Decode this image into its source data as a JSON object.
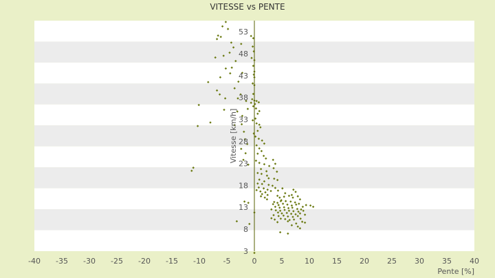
{
  "chart_data": {
    "type": "scatter",
    "title": "VITESSE vs PENTE",
    "xlabel": "Pente [%]",
    "ylabel": "Vitesse [km/h]",
    "xlim": [
      -40,
      40
    ],
    "ylim": [
      3,
      55.5
    ],
    "x_ticks": [
      -40,
      -35,
      -30,
      -25,
      -20,
      -15,
      -10,
      -5,
      0,
      5,
      10,
      15,
      20,
      25,
      30,
      35,
      40
    ],
    "y_ticks": [
      3,
      8,
      13,
      18,
      23,
      28,
      33,
      38,
      43,
      48,
      53
    ],
    "grid": "alternating horizontal bands",
    "legend": "none",
    "colors": {
      "background": "#eaf0c8",
      "band_light": "#ffffff",
      "band_dark": "#ececec",
      "marker": "#6b7a12",
      "text": "#555555",
      "axis": "#556000",
      "title": "#333333"
    },
    "series": [
      {
        "marker": "diamond",
        "points": [
          [
            -5.2,
            55.2
          ],
          [
            -5.8,
            54.2
          ],
          [
            -4.8,
            53.6
          ],
          [
            -6.6,
            52.1
          ],
          [
            -6.8,
            51.3
          ],
          [
            -6.1,
            51.8
          ],
          [
            -4.2,
            50.5
          ],
          [
            -3.8,
            49.4
          ],
          [
            -2.4,
            50.2
          ],
          [
            -4.5,
            48.2
          ],
          [
            -5.6,
            47.5
          ],
          [
            -3.4,
            46.3
          ],
          [
            -4.1,
            44.8
          ],
          [
            -5.2,
            44.6
          ],
          [
            -7.1,
            47.1
          ],
          [
            -6.2,
            42.6
          ],
          [
            -8.4,
            41.5
          ],
          [
            -4.4,
            43.5
          ],
          [
            -2.2,
            43.6
          ],
          [
            -2.9,
            41.6
          ],
          [
            -3.6,
            40.1
          ],
          [
            -6.8,
            39.6
          ],
          [
            -6.3,
            38.7
          ],
          [
            -5.3,
            37.8
          ],
          [
            -2.5,
            38.7
          ],
          [
            -3.0,
            37.8
          ],
          [
            -1.5,
            37.2
          ],
          [
            -10.1,
            36.3
          ],
          [
            -5.5,
            35.2
          ],
          [
            -3.1,
            34.8
          ],
          [
            -2.2,
            33.8
          ],
          [
            -1.2,
            35.4
          ],
          [
            -8.0,
            32.3
          ],
          [
            -10.3,
            31.5
          ],
          [
            -3.6,
            31.7
          ],
          [
            -2.3,
            31.9
          ],
          [
            -1.9,
            30.2
          ],
          [
            -1.7,
            28.5
          ],
          [
            -1.3,
            27.4
          ],
          [
            -2.4,
            26.3
          ],
          [
            -1.6,
            25.3
          ],
          [
            -2.0,
            23.8
          ],
          [
            -1.1,
            22.7
          ],
          [
            -11.1,
            22.0
          ],
          [
            -11.4,
            21.3
          ],
          [
            -1.1,
            14.0
          ],
          [
            -1.8,
            14.3
          ],
          [
            -3.2,
            9.8
          ],
          [
            -0.9,
            9.2
          ],
          [
            -0.6,
            52.0
          ],
          [
            -0.2,
            51.5
          ],
          [
            -0.3,
            49.6
          ],
          [
            -0.1,
            48.5
          ],
          [
            -0.5,
            47.0
          ],
          [
            0.0,
            46.5
          ],
          [
            -0.2,
            45.2
          ],
          [
            0.0,
            43.9
          ],
          [
            -0.1,
            43.2
          ],
          [
            0.0,
            42.6
          ],
          [
            -0.3,
            41.2
          ],
          [
            0.0,
            40.8
          ],
          [
            -0.2,
            38.8
          ],
          [
            -0.4,
            37.6
          ],
          [
            0.0,
            37.3
          ],
          [
            -0.6,
            36.8
          ],
          [
            0.1,
            36.5
          ],
          [
            0.4,
            37.2
          ],
          [
            0.8,
            36.9
          ],
          [
            -0.2,
            36.0
          ],
          [
            0.3,
            35.5
          ],
          [
            0.9,
            34.9
          ],
          [
            0.6,
            34.3
          ],
          [
            0.2,
            33.2
          ],
          [
            -0.3,
            32.8
          ],
          [
            0.4,
            32.1
          ],
          [
            0.9,
            31.8
          ],
          [
            1.1,
            31.2
          ],
          [
            0.6,
            30.4
          ],
          [
            -0.1,
            29.8
          ],
          [
            0.2,
            29.1
          ],
          [
            0.8,
            28.6
          ],
          [
            1.4,
            28.2
          ],
          [
            1.8,
            27.5
          ],
          [
            0.4,
            27.1
          ],
          [
            0.9,
            26.4
          ],
          [
            1.3,
            25.8
          ],
          [
            0.6,
            25.2
          ],
          [
            1.7,
            24.7
          ],
          [
            2.1,
            24.1
          ],
          [
            0.3,
            23.6
          ],
          [
            0.9,
            23.1
          ],
          [
            1.8,
            22.8
          ],
          [
            2.7,
            22.4
          ],
          [
            1.2,
            21.7
          ],
          [
            2.2,
            21.2
          ],
          [
            0.6,
            20.8
          ],
          [
            3.4,
            23.8
          ],
          [
            3.8,
            22.9
          ],
          [
            3.5,
            21.9
          ],
          [
            4.1,
            21.1
          ],
          [
            1.3,
            20.6
          ],
          [
            2.3,
            20.2
          ],
          [
            2.6,
            19.6
          ],
          [
            0.9,
            19.3
          ],
          [
            1.8,
            18.9
          ],
          [
            4.2,
            19.2
          ],
          [
            3.6,
            19.5
          ],
          [
            0.6,
            18.4
          ],
          [
            1.4,
            18.3
          ],
          [
            2.6,
            18.1
          ],
          [
            3.3,
            17.9
          ],
          [
            0.8,
            17.5
          ],
          [
            1.7,
            17.3
          ],
          [
            2.4,
            17.0
          ],
          [
            3.8,
            17.4
          ],
          [
            0.4,
            16.9
          ],
          [
            1.1,
            16.6
          ],
          [
            2.0,
            16.4
          ],
          [
            3.0,
            16.7
          ],
          [
            4.3,
            16.8
          ],
          [
            5.1,
            17.3
          ],
          [
            1.4,
            16.0
          ],
          [
            2.4,
            15.8
          ],
          [
            1.2,
            15.5
          ],
          [
            1.9,
            15.2
          ],
          [
            2.3,
            14.8
          ],
          [
            5.6,
            16.2
          ],
          [
            7.1,
            17.0
          ],
          [
            7.5,
            16.5
          ],
          [
            6.8,
            15.8
          ],
          [
            4.2,
            15.6
          ],
          [
            4.6,
            15.2
          ],
          [
            5.4,
            15.4
          ],
          [
            6.3,
            15.6
          ],
          [
            7.0,
            15.2
          ],
          [
            7.9,
            15.5
          ],
          [
            8.3,
            14.8
          ],
          [
            4.9,
            14.6
          ],
          [
            5.7,
            14.4
          ],
          [
            6.6,
            14.3
          ],
          [
            7.4,
            14.1
          ],
          [
            3.6,
            14.2
          ],
          [
            4.2,
            14.0
          ],
          [
            4.8,
            14.4
          ],
          [
            3.4,
            13.7
          ],
          [
            4.4,
            13.5
          ],
          [
            5.2,
            13.8
          ],
          [
            6.0,
            13.6
          ],
          [
            6.8,
            13.4
          ],
          [
            7.6,
            13.6
          ],
          [
            8.1,
            13.8
          ],
          [
            8.8,
            13.1
          ],
          [
            9.4,
            13.5
          ],
          [
            10.2,
            13.4
          ],
          [
            10.7,
            13.1
          ],
          [
            3.8,
            13.1
          ],
          [
            4.6,
            12.9
          ],
          [
            5.4,
            13.0
          ],
          [
            6.2,
            12.8
          ],
          [
            6.9,
            12.9
          ],
          [
            7.8,
            12.6
          ],
          [
            8.5,
            12.5
          ],
          [
            3.1,
            12.5
          ],
          [
            3.9,
            12.3
          ],
          [
            4.7,
            12.2
          ],
          [
            5.5,
            12.4
          ],
          [
            6.3,
            12.2
          ],
          [
            7.1,
            12.1
          ],
          [
            8.0,
            12.0
          ],
          [
            8.9,
            12.2
          ],
          [
            4.3,
            11.8
          ],
          [
            5.0,
            11.6
          ],
          [
            5.9,
            11.7
          ],
          [
            6.7,
            11.5
          ],
          [
            7.5,
            11.4
          ],
          [
            8.3,
            11.6
          ],
          [
            9.2,
            11.3
          ],
          [
            3.5,
            11.2
          ],
          [
            4.4,
            11.0
          ],
          [
            5.3,
            11.1
          ],
          [
            6.1,
            10.9
          ],
          [
            7.0,
            10.8
          ],
          [
            7.9,
            11.0
          ],
          [
            3.1,
            10.5
          ],
          [
            3.7,
            10.2
          ],
          [
            4.8,
            10.4
          ],
          [
            5.6,
            10.3
          ],
          [
            6.4,
            10.1
          ],
          [
            7.2,
            10.2
          ],
          [
            8.4,
            10.4
          ],
          [
            8.7,
            9.7
          ],
          [
            4.2,
            9.6
          ],
          [
            6.1,
            9.8
          ],
          [
            7.6,
            9.3
          ],
          [
            9.2,
            9.5
          ],
          [
            6.8,
            8.9
          ],
          [
            7.9,
            8.6
          ],
          [
            8.3,
            8.2
          ],
          [
            4.7,
            7.3
          ],
          [
            6.1,
            7.0
          ],
          [
            0.0,
            11.8
          ],
          [
            0.0,
            2.6
          ]
        ]
      }
    ]
  }
}
